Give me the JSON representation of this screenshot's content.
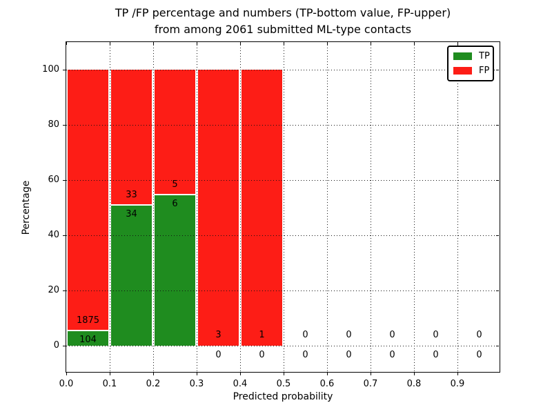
{
  "figure": {
    "title_line1": "TP /FP percentage and numbers (TP-bottom value, FP-upper)",
    "title_line2": "from among 2061 submitted ML-type contacts",
    "background_color": "#ffffff"
  },
  "chart_data": {
    "type": "bar",
    "stacked": true,
    "normalized": "each bin stacked to 100%",
    "title": "TP /FP percentage and numbers (TP-bottom value, FP-upper)\nfrom among 2061 submitted ML-type contacts",
    "xlabel": "Predicted probability",
    "ylabel": "Percentage",
    "total_contacts": 2061,
    "xlim": [
      0.0,
      1.0
    ],
    "ylim": [
      -10,
      110
    ],
    "xticks": [
      0.0,
      0.1,
      0.2,
      0.3,
      0.4,
      0.5,
      0.6,
      0.7,
      0.8,
      0.9
    ],
    "xtick_labels": [
      "0.0",
      "0.1",
      "0.2",
      "0.3",
      "0.4",
      "0.5",
      "0.6",
      "0.7",
      "0.8",
      "0.9"
    ],
    "yticks": [
      0,
      20,
      40,
      60,
      80,
      100
    ],
    "ytick_labels": [
      "0",
      "20",
      "40",
      "60",
      "80",
      "100"
    ],
    "grid": {
      "visible": true,
      "style": "dotted",
      "color": "#111111",
      "drawn_above_bars": true
    },
    "bins": [
      {
        "range": [
          0.0,
          0.1
        ],
        "tp": 104,
        "fp": 1875
      },
      {
        "range": [
          0.1,
          0.2
        ],
        "tp": 34,
        "fp": 33
      },
      {
        "range": [
          0.2,
          0.3
        ],
        "tp": 6,
        "fp": 5
      },
      {
        "range": [
          0.3,
          0.4
        ],
        "tp": 0,
        "fp": 3
      },
      {
        "range": [
          0.4,
          0.5
        ],
        "tp": 0,
        "fp": 1
      },
      {
        "range": [
          0.5,
          0.6
        ],
        "tp": 0,
        "fp": 0
      },
      {
        "range": [
          0.6,
          0.7
        ],
        "tp": 0,
        "fp": 0
      },
      {
        "range": [
          0.7,
          0.8
        ],
        "tp": 0,
        "fp": 0
      },
      {
        "range": [
          0.8,
          0.9
        ],
        "tp": 0,
        "fp": 0
      },
      {
        "range": [
          0.9,
          1.0
        ],
        "tp": 0,
        "fp": 0
      }
    ],
    "series": [
      {
        "name": "TP",
        "color": "#1f8c1f",
        "counts": [
          104,
          34,
          6,
          0,
          0,
          0,
          0,
          0,
          0,
          0
        ]
      },
      {
        "name": "FP",
        "color": "#fd1d16",
        "counts": [
          1875,
          33,
          5,
          3,
          1,
          0,
          0,
          0,
          0,
          0
        ]
      }
    ],
    "legend": {
      "position": "upper right",
      "entries": [
        {
          "label": "TP",
          "color": "#1f8c1f"
        },
        {
          "label": "FP",
          "color": "#fd1d16"
        }
      ]
    },
    "bar_edge_color": "#ffffff",
    "text_color": "#000000"
  }
}
